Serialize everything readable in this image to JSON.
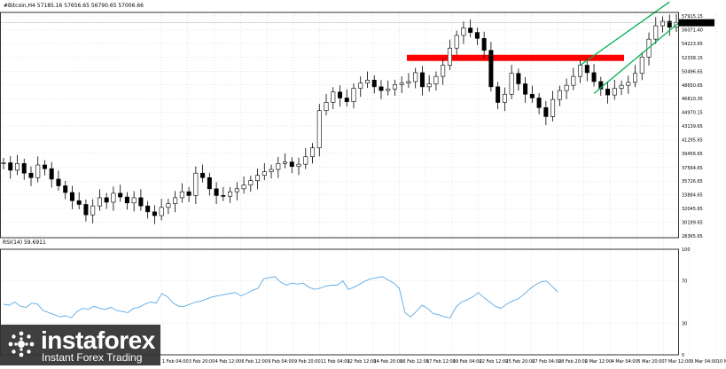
{
  "header": {
    "symbol_line": "#Bitcoin,H4  57185.16 57656.65 56790.65 57006.66",
    "indicator_label": "RSI(14) 59.6911"
  },
  "watermark": {
    "brand": "instaforex",
    "tagline": "Instant Forex Trading"
  },
  "chart_data": [
    {
      "type": "line",
      "subtype": "candlestick",
      "title": "",
      "x_labels": [
        "1 Feb 04:00",
        "3 Feb 20:00",
        "4 Feb 12:00",
        "6 Feb 12:00",
        "9 Feb 04:00",
        "9 Feb 20:00",
        "11 Feb 04:00",
        "12 Feb 12:00",
        "14 Feb 20:00",
        "16 Feb 12:00",
        "17 Feb 12:00",
        "19 Feb 04:00",
        "22 Feb 12:00",
        "25 Feb 20:00",
        "27 Feb 04:00",
        "28 Feb 20:00",
        "2 Mar 12:00",
        "4 Mar 04:00",
        "5 Mar 20:00",
        "7 Mar 12:00",
        "9 Mar 04:00",
        "10 Mar 12:00"
      ],
      "y_ticks": [
        57915.15,
        56071.4,
        54223.65,
        52338.15,
        50496.65,
        48650.65,
        46810.35,
        44970.15,
        43139.65,
        41295.65,
        39456.65,
        37564.65,
        35726.65,
        33884.65,
        32045.65,
        30199.65,
        28365.65
      ],
      "ylim": [
        28365.65,
        57915.15
      ],
      "current_price": "57006.66",
      "close_series": [
        38200,
        37200,
        38100,
        36800,
        36200,
        37900,
        37400,
        36000,
        35100,
        34200,
        33100,
        32600,
        31200,
        32400,
        33500,
        32900,
        34100,
        33600,
        32800,
        33500,
        32400,
        31600,
        31100,
        32200,
        32700,
        33500,
        34300,
        33800,
        36800,
        36200,
        34700,
        33800,
        33700,
        34300,
        34700,
        35200,
        35800,
        36500,
        37000,
        37300,
        38100,
        38300,
        37700,
        38000,
        39000,
        40200,
        45200,
        46300,
        47700,
        46900,
        46400,
        48200,
        48900,
        49300,
        48400,
        47900,
        48100,
        48700,
        48900,
        49100,
        50300,
        48400,
        48800,
        49800,
        51300,
        53600,
        55300,
        56300,
        55700,
        54900,
        53300,
        48400,
        46300,
        47400,
        50200,
        48800,
        47400,
        46900,
        45600,
        44400,
        46700,
        47900,
        48600,
        49800,
        51300,
        50300,
        49100,
        48100,
        47300,
        48200,
        48600,
        49000,
        50200,
        52400,
        54800,
        56600,
        57200,
        56400,
        57006.66
      ],
      "resistance_zone": {
        "from": 51870,
        "to": 52700,
        "color": "#ff0000"
      },
      "channel_color": "#00b050",
      "channel_lower": [
        [
          86,
          47500
        ],
        [
          99,
          57500
        ]
      ],
      "channel_upper": [
        [
          84,
          51300
        ],
        [
          97,
          59800
        ]
      ]
    },
    {
      "type": "line",
      "title": "RSI(14) 59.6911",
      "y_ticks": [
        100,
        70,
        30,
        0
      ],
      "ylim": [
        0,
        100
      ],
      "series_color": "#5aaae6",
      "values": [
        48,
        47,
        50,
        46,
        45,
        49,
        48,
        42,
        40,
        38,
        36,
        37,
        35,
        41,
        44,
        43,
        46,
        44,
        43,
        45,
        42,
        41,
        40,
        44,
        45,
        48,
        50,
        49,
        58,
        55,
        49,
        46,
        46,
        48,
        50,
        51,
        53,
        55,
        56,
        57,
        58,
        59,
        56,
        58,
        61,
        63,
        72,
        73,
        74,
        69,
        66,
        68,
        67,
        68,
        64,
        62,
        63,
        65,
        66,
        66,
        70,
        62,
        64,
        67,
        70,
        72,
        73,
        74,
        71,
        68,
        63,
        40,
        36,
        41,
        47,
        44,
        39,
        38,
        36,
        35,
        45,
        50,
        52,
        55,
        59,
        54,
        50,
        46,
        44,
        48,
        51,
        53,
        57,
        62,
        66,
        69,
        70,
        65,
        59.69
      ]
    }
  ]
}
